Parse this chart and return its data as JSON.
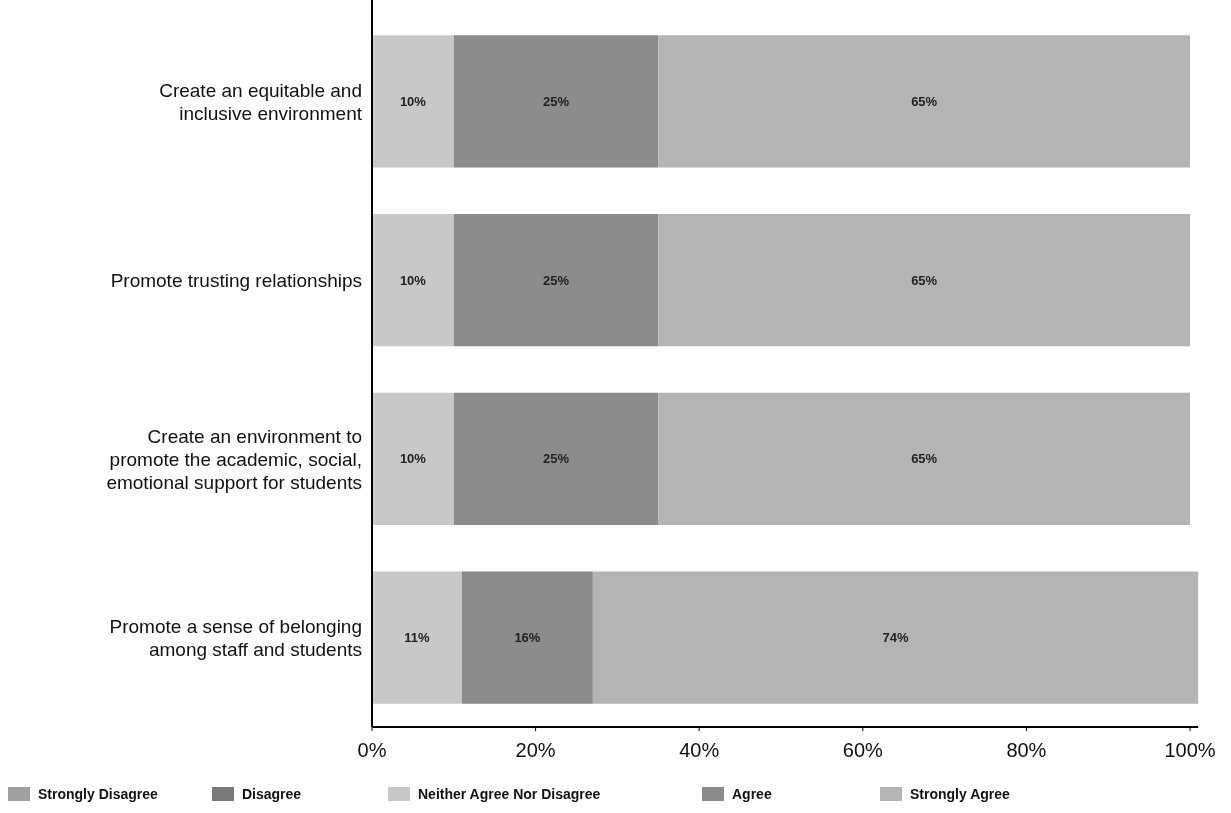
{
  "chart_data": {
    "type": "bar",
    "orientation": "horizontal",
    "stacked": true,
    "categories": [
      "Create an equitable and inclusive environment",
      "Promote trusting relationships",
      "Create an environment to promote the academic, social, emotional support for students",
      "Promote a sense of belonging among staff and students"
    ],
    "series": [
      {
        "name": "Strongly Disagree",
        "color": "#a0a0a0",
        "values": [
          0,
          0,
          0,
          0
        ],
        "value_labels": [
          null,
          null,
          null,
          null
        ]
      },
      {
        "name": "Disagree",
        "color": "#7a7a7a",
        "values": [
          0,
          0,
          0,
          0
        ],
        "value_labels": [
          null,
          null,
          null,
          null
        ]
      },
      {
        "name": "Neither Agree Nor Disagree",
        "color": "#c8c8c8",
        "values": [
          10,
          10,
          10,
          11
        ],
        "value_labels": [
          "10%",
          "10%",
          "10%",
          "11%"
        ]
      },
      {
        "name": "Agree",
        "color": "#8c8c8c",
        "values": [
          25,
          25,
          25,
          16
        ],
        "value_labels": [
          "25%",
          "25%",
          "25%",
          "16%"
        ]
      },
      {
        "name": "Strongly Agree",
        "color": "#b4b4b4",
        "values": [
          65,
          65,
          65,
          74
        ],
        "value_labels": [
          "65%",
          "65%",
          "65%",
          "74%"
        ]
      }
    ],
    "xlim": [
      0,
      101
    ],
    "xticks": [
      {
        "value": 0,
        "label": "0%"
      },
      {
        "value": 20,
        "label": "20%"
      },
      {
        "value": 40,
        "label": "40%"
      },
      {
        "value": 60,
        "label": "60%"
      },
      {
        "value": 80,
        "label": "80%"
      },
      {
        "value": 100,
        "label": "100%"
      }
    ],
    "legend": "bottom"
  }
}
